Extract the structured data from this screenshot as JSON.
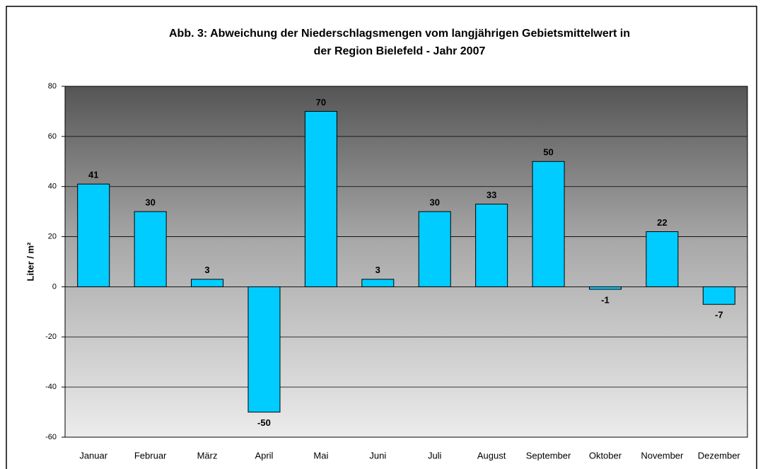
{
  "chart_data": {
    "type": "bar",
    "title": [
      "Abb. 3: Abweichung der Niederschlagsmengen vom langjährigen Gebietsmittelwert in",
      "der Region Bielefeld - Jahr 2007"
    ],
    "y_label": "Liter / m²",
    "categories": [
      "Januar",
      "Februar",
      "März",
      "April",
      "Mai",
      "Juni",
      "Juli",
      "August",
      "September",
      "Oktober",
      "November",
      "Dezember"
    ],
    "values": [
      41,
      30,
      3,
      -50,
      70,
      3,
      30,
      33,
      50,
      -1,
      22,
      -7
    ],
    "color": "#00ccff",
    "ylim": [
      -60,
      80
    ],
    "yticks": [
      -60,
      -40,
      -20,
      0,
      20,
      40,
      60,
      80
    ],
    "grid": true
  }
}
